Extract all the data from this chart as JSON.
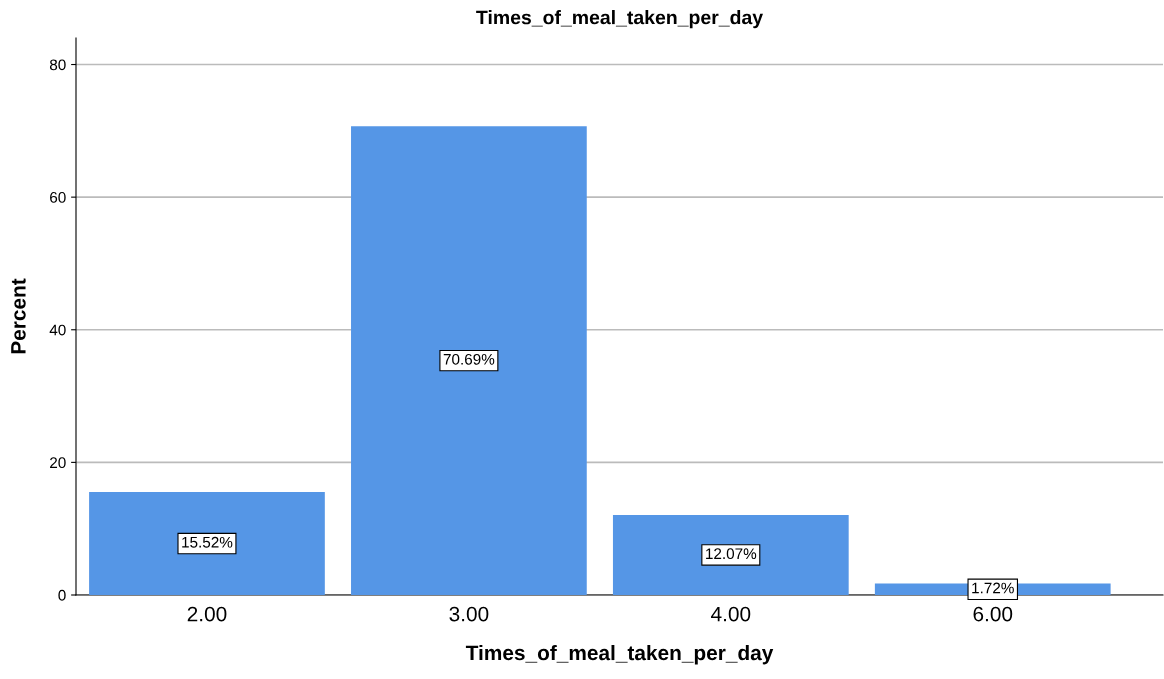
{
  "chart_data": {
    "type": "bar",
    "title": "Times_of_meal_taken_per_day",
    "xlabel": "Times_of_meal_taken_per_day",
    "ylabel": "Percent",
    "categories": [
      "2.00",
      "3.00",
      "4.00",
      "6.00"
    ],
    "values": [
      15.52,
      70.69,
      12.07,
      1.72
    ],
    "value_labels": [
      "15.52%",
      "70.69%",
      "12.07%",
      "1.72%"
    ],
    "color": "#5596e6",
    "ylim": [
      0,
      84
    ],
    "yticks": [
      0,
      20,
      40,
      60,
      80
    ],
    "grid": "y"
  }
}
